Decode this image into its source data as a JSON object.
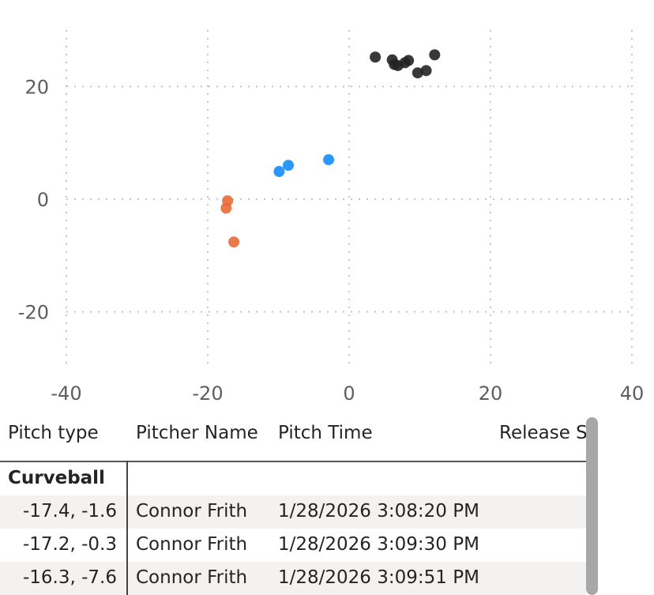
{
  "chart_data": {
    "type": "scatter",
    "xlim": [
      -40,
      40
    ],
    "ylim": [
      -30,
      30
    ],
    "x_ticks": [
      "-40",
      "-20",
      "0",
      "20",
      "40"
    ],
    "y_ticks": [
      "20",
      "0",
      "-20"
    ],
    "grid": true,
    "series": [
      {
        "color": "#E66C37",
        "points": [
          [
            -17.4,
            -1.6
          ],
          [
            -17.2,
            -0.3
          ],
          [
            -16.3,
            -7.6
          ]
        ]
      },
      {
        "color": "#118DFF",
        "points": [
          [
            -9.9,
            4.9
          ],
          [
            -8.6,
            6.0
          ],
          [
            -2.9,
            7.0
          ]
        ]
      },
      {
        "color": "#252423",
        "points": [
          [
            3.7,
            25.2
          ],
          [
            6.1,
            24.7
          ],
          [
            6.4,
            23.9
          ],
          [
            6.9,
            23.7
          ],
          [
            7.9,
            24.2
          ],
          [
            8.4,
            24.6
          ],
          [
            9.7,
            22.4
          ],
          [
            10.9,
            22.8
          ],
          [
            12.1,
            25.6
          ]
        ]
      }
    ]
  },
  "table": {
    "headers": [
      "Pitch type",
      "Pitcher Name",
      "Pitch Time",
      "Release S"
    ],
    "group_label": "Curveball",
    "rows": [
      {
        "loc": "-17.4, -1.6",
        "pitcher": "Connor Frith",
        "time": "1/28/2026 3:08:20 PM"
      },
      {
        "loc": "-17.2, -0.3",
        "pitcher": "Connor Frith",
        "time": "1/28/2026 3:09:30 PM"
      },
      {
        "loc": "-16.3, -7.6",
        "pitcher": "Connor Frith",
        "time": "1/28/2026 3:09:51 PM"
      }
    ]
  }
}
